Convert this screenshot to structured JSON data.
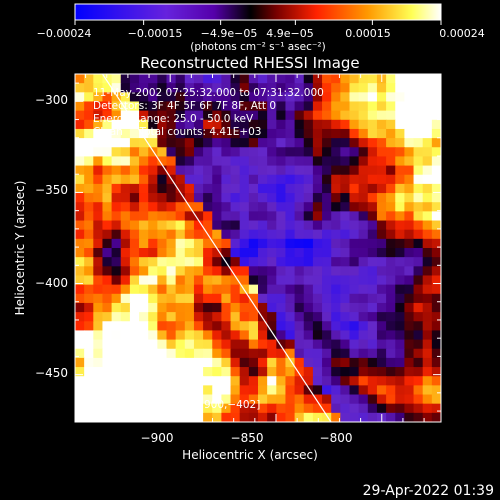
{
  "chart_data": {
    "type": "heatmap",
    "title": "Reconstructed RHESSI Image",
    "xlabel": "Heliocentric X (arcsec)",
    "ylabel": "Heliocentric Y (arcsec)",
    "xlim": [
      -945,
      -772
    ],
    "ylim": [
      -476,
      -285
    ],
    "x_ticks": [
      -900,
      -850,
      -800
    ],
    "y_ticks": [
      -300,
      -350,
      -400,
      -450
    ],
    "x_tick_labels": [
      "−900",
      "−850",
      "−800"
    ],
    "y_tick_labels": [
      "−300",
      "−350",
      "−400",
      "−450"
    ],
    "colorbar": {
      "range": [
        -0.00024,
        0.00024
      ],
      "tick_labels": [
        "−0.00024",
        "−0.00015",
        "−4.9e−05",
        "4.9e−05",
        "0.00015",
        "0.00024"
      ],
      "unit": "(photons cm⁻² s⁻¹ asec⁻²)"
    },
    "annotations": [
      "11-May-2002 07:25:32.000 to 07:31:32.000",
      "Detectors: 3F 4F 5F 6F 7F 8F, Att 0",
      "Energy Range: 25.0 - 50.0 keV",
      "Clean     Total counts: 4.41E+03"
    ],
    "peak_label": "Position of Peak = [−900,−402]",
    "peak_position": [
      -900,
      -402
    ],
    "limb_line": [
      [
        -932,
        -285
      ],
      [
        -824,
        -476
      ]
    ],
    "colors": [
      "#0000ff",
      "#5522cc",
      "#8800ff",
      "#000000",
      "#cc2200",
      "#ff8800",
      "#ffff66",
      "#ffffff"
    ]
  },
  "footer": {
    "timestamp": "29-Apr-2022 01:39"
  }
}
